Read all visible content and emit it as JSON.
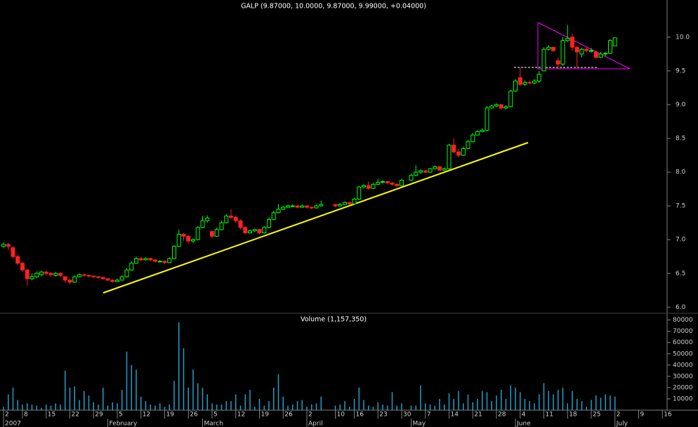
{
  "chart_data": {
    "type": "candlestick",
    "title": "GALP (9.87000, 10.0000, 9.87000, 9.99000, +0.04000)",
    "x": [
      "2007-01-02",
      "2007-01-03",
      "2007-01-04",
      "2007-01-05",
      "2007-01-08",
      "2007-01-09",
      "2007-01-10",
      "2007-01-11",
      "2007-01-12",
      "2007-01-15",
      "2007-01-16",
      "2007-01-17",
      "2007-01-18",
      "2007-01-19",
      "2007-01-22",
      "2007-01-23",
      "2007-01-24",
      "2007-01-25",
      "2007-01-26",
      "2007-01-29",
      "2007-01-30",
      "2007-01-31",
      "2007-02-01",
      "2007-02-02",
      "2007-02-05",
      "2007-02-06",
      "2007-02-07",
      "2007-02-08",
      "2007-02-09",
      "2007-02-12",
      "2007-02-13",
      "2007-02-14",
      "2007-02-15",
      "2007-02-16",
      "2007-02-19",
      "2007-02-20",
      "2007-02-21",
      "2007-02-22",
      "2007-02-23",
      "2007-02-26",
      "2007-02-27",
      "2007-02-28",
      "2007-03-01",
      "2007-03-02",
      "2007-03-05",
      "2007-03-06",
      "2007-03-07",
      "2007-03-08",
      "2007-03-09",
      "2007-03-12",
      "2007-03-13",
      "2007-03-14",
      "2007-03-15",
      "2007-03-16",
      "2007-03-19",
      "2007-03-20",
      "2007-03-21",
      "2007-03-22",
      "2007-03-23",
      "2007-03-26",
      "2007-03-27",
      "2007-03-28",
      "2007-03-29",
      "2007-03-30",
      "2007-04-02",
      "2007-04-03",
      "2007-04-04",
      "2007-04-05",
      "2007-04-10",
      "2007-04-11",
      "2007-04-12",
      "2007-04-13",
      "2007-04-16",
      "2007-04-17",
      "2007-04-18",
      "2007-04-19",
      "2007-04-20",
      "2007-04-23",
      "2007-04-24",
      "2007-04-25",
      "2007-04-26",
      "2007-04-27",
      "2007-04-30",
      "2007-05-02",
      "2007-05-03",
      "2007-05-04",
      "2007-05-07",
      "2007-05-08",
      "2007-05-09",
      "2007-05-10",
      "2007-05-11",
      "2007-05-14",
      "2007-05-15",
      "2007-05-16",
      "2007-05-17",
      "2007-05-18",
      "2007-05-21",
      "2007-05-22",
      "2007-05-23",
      "2007-05-24",
      "2007-05-25",
      "2007-05-28",
      "2007-05-29",
      "2007-05-30",
      "2007-05-31",
      "2007-06-01",
      "2007-06-04",
      "2007-06-05",
      "2007-06-06",
      "2007-06-07",
      "2007-06-08",
      "2007-06-11",
      "2007-06-12",
      "2007-06-13",
      "2007-06-14",
      "2007-06-15",
      "2007-06-18",
      "2007-06-19",
      "2007-06-20",
      "2007-06-21",
      "2007-06-22",
      "2007-06-25",
      "2007-06-26",
      "2007-06-27",
      "2007-06-28",
      "2007-06-29",
      "2007-07-02"
    ],
    "open": [
      6.9,
      6.93,
      6.88,
      6.75,
      6.65,
      6.55,
      6.42,
      6.45,
      6.48,
      6.52,
      6.5,
      6.47,
      6.5,
      6.45,
      6.4,
      6.37,
      6.45,
      6.48,
      6.47,
      6.46,
      6.45,
      6.44,
      6.42,
      6.4,
      6.38,
      6.4,
      6.45,
      6.55,
      6.65,
      6.72,
      6.7,
      6.72,
      6.7,
      6.68,
      6.68,
      6.66,
      6.72,
      6.9,
      7.08,
      7.05,
      6.98,
      7.0,
      7.18,
      7.28,
      7.12,
      7.05,
      7.15,
      7.25,
      7.35,
      7.33,
      7.28,
      7.18,
      7.1,
      7.13,
      7.15,
      7.1,
      7.18,
      7.3,
      7.4,
      7.45,
      7.48,
      7.5,
      7.5,
      7.48,
      7.5,
      7.48,
      7.47,
      7.5,
      7.52,
      7.5,
      7.52,
      7.55,
      7.53,
      7.6,
      7.78,
      7.8,
      7.76,
      7.82,
      7.85,
      7.86,
      7.84,
      7.82,
      7.8,
      7.88,
      7.95,
      8.0,
      8.02,
      8.0,
      8.05,
      8.08,
      8.03,
      8.05,
      8.4,
      8.3,
      8.25,
      8.35,
      8.45,
      8.55,
      8.6,
      8.62,
      8.95,
      8.98,
      9.0,
      8.95,
      8.97,
      9.2,
      9.4,
      9.3,
      9.33,
      9.32,
      9.35,
      9.5,
      9.82,
      9.85,
      9.65,
      9.6,
      9.95,
      10.0,
      9.85,
      9.75,
      9.82,
      9.8,
      9.78,
      9.7,
      9.75,
      9.76,
      9.87
    ],
    "high": [
      6.96,
      6.95,
      6.9,
      6.78,
      6.67,
      6.57,
      6.5,
      6.53,
      6.54,
      6.54,
      6.52,
      6.52,
      6.51,
      6.46,
      6.42,
      6.47,
      6.5,
      6.49,
      6.48,
      6.47,
      6.46,
      6.45,
      6.43,
      6.41,
      6.42,
      6.47,
      6.58,
      6.68,
      6.75,
      6.74,
      6.74,
      6.73,
      6.71,
      6.7,
      6.69,
      6.74,
      6.92,
      7.15,
      7.1,
      7.06,
      7.02,
      7.2,
      7.35,
      7.36,
      7.14,
      7.18,
      7.28,
      7.38,
      7.45,
      7.36,
      7.3,
      7.2,
      7.15,
      7.16,
      7.16,
      7.2,
      7.33,
      7.43,
      7.53,
      7.5,
      7.52,
      7.52,
      7.51,
      7.52,
      7.51,
      7.49,
      7.52,
      7.58,
      7.53,
      7.54,
      7.57,
      7.56,
      7.62,
      7.8,
      7.82,
      7.86,
      7.84,
      7.9,
      7.88,
      7.87,
      7.85,
      7.84,
      7.9,
      7.98,
      8.1,
      8.04,
      8.03,
      8.06,
      8.1,
      8.09,
      8.07,
      8.42,
      8.5,
      8.35,
      8.38,
      8.48,
      8.58,
      8.62,
      8.65,
      8.98,
      9.0,
      9.02,
      9.01,
      8.99,
      9.22,
      9.38,
      9.55,
      9.36,
      9.36,
      9.38,
      9.5,
      9.85,
      9.88,
      9.86,
      9.7,
      10.0,
      10.18,
      10.05,
      9.87,
      9.84,
      9.85,
      9.84,
      9.8,
      9.78,
      9.78,
      9.97,
      10.0
    ],
    "low": [
      6.88,
      6.85,
      6.72,
      6.62,
      6.52,
      6.32,
      6.4,
      6.43,
      6.46,
      6.47,
      6.45,
      6.45,
      6.44,
      6.36,
      6.34,
      6.36,
      6.44,
      6.45,
      6.44,
      6.43,
      6.42,
      6.41,
      6.39,
      6.36,
      6.37,
      6.39,
      6.44,
      6.54,
      6.64,
      6.68,
      6.69,
      6.68,
      6.66,
      6.66,
      6.64,
      6.65,
      6.71,
      6.89,
      6.98,
      6.94,
      6.95,
      6.99,
      7.17,
      7.25,
      7.02,
      7.04,
      7.14,
      7.24,
      7.3,
      7.25,
      7.15,
      7.08,
      7.09,
      7.11,
      7.08,
      7.09,
      7.17,
      7.29,
      7.39,
      7.44,
      7.47,
      7.48,
      7.46,
      7.47,
      7.46,
      7.45,
      7.46,
      7.49,
      7.48,
      7.49,
      7.51,
      7.51,
      7.52,
      7.59,
      7.77,
      7.74,
      7.75,
      7.81,
      7.83,
      7.82,
      7.8,
      7.78,
      7.79,
      7.87,
      7.94,
      7.97,
      7.98,
      7.99,
      8.04,
      8.02,
      8.02,
      8.04,
      8.28,
      8.22,
      8.24,
      8.34,
      8.44,
      8.54,
      8.59,
      8.61,
      8.94,
      8.96,
      8.93,
      8.93,
      8.96,
      9.19,
      9.28,
      9.28,
      9.3,
      9.3,
      9.32,
      9.5,
      9.8,
      9.78,
      9.52,
      9.58,
      9.93,
      9.8,
      9.55,
      9.7,
      9.78,
      9.77,
      9.68,
      9.69,
      9.72,
      9.75,
      9.87
    ],
    "close": [
      6.93,
      6.9,
      6.75,
      6.65,
      6.55,
      6.42,
      6.45,
      6.5,
      6.52,
      6.5,
      6.48,
      6.5,
      6.47,
      6.4,
      6.37,
      6.45,
      6.48,
      6.47,
      6.46,
      6.45,
      6.44,
      6.42,
      6.4,
      6.38,
      6.4,
      6.45,
      6.55,
      6.65,
      6.72,
      6.7,
      6.72,
      6.7,
      6.68,
      6.68,
      6.66,
      6.72,
      6.9,
      7.08,
      7.05,
      6.98,
      7.0,
      7.18,
      7.28,
      7.32,
      7.05,
      7.15,
      7.25,
      7.35,
      7.33,
      7.28,
      7.18,
      7.1,
      7.13,
      7.15,
      7.1,
      7.18,
      7.3,
      7.4,
      7.45,
      7.48,
      7.5,
      7.5,
      7.48,
      7.5,
      7.48,
      7.47,
      7.5,
      7.52,
      7.5,
      7.52,
      7.55,
      7.53,
      7.6,
      7.78,
      7.8,
      7.76,
      7.82,
      7.85,
      7.86,
      7.84,
      7.82,
      7.8,
      7.88,
      7.95,
      8.0,
      8.02,
      8.0,
      8.05,
      8.08,
      8.03,
      8.05,
      8.4,
      8.3,
      8.25,
      8.35,
      8.45,
      8.55,
      8.6,
      8.62,
      8.95,
      8.98,
      9.0,
      8.95,
      8.97,
      9.2,
      9.35,
      9.3,
      9.33,
      9.32,
      9.35,
      9.45,
      9.82,
      9.85,
      9.8,
      9.6,
      9.95,
      9.98,
      9.85,
      9.78,
      9.82,
      9.8,
      9.8,
      9.7,
      9.75,
      9.76,
      9.95,
      9.99
    ],
    "up_color": "#00ff00",
    "down_color": "#ff2020",
    "xlim": [
      "2007-01-02",
      "2007-07-17"
    ],
    "xticks": [
      {
        "value": "2007-01-02",
        "label": "2"
      },
      {
        "value": "2007-01-08",
        "label": "8"
      },
      {
        "value": "2007-01-15",
        "label": "15"
      },
      {
        "value": "2007-01-22",
        "label": "22"
      },
      {
        "value": "2007-01-29",
        "label": "29"
      },
      {
        "value": "2007-02-05",
        "label": "5"
      },
      {
        "value": "2007-02-12",
        "label": "12"
      },
      {
        "value": "2007-02-19",
        "label": "19"
      },
      {
        "value": "2007-02-26",
        "label": "26"
      },
      {
        "value": "2007-03-05",
        "label": "5"
      },
      {
        "value": "2007-03-12",
        "label": "12"
      },
      {
        "value": "2007-03-19",
        "label": "19"
      },
      {
        "value": "2007-03-26",
        "label": "26"
      },
      {
        "value": "2007-04-02",
        "label": "2"
      },
      {
        "value": "2007-04-10",
        "label": "10"
      },
      {
        "value": "2007-04-16",
        "label": "16"
      },
      {
        "value": "2007-04-23",
        "label": "23"
      },
      {
        "value": "2007-04-30",
        "label": "30"
      },
      {
        "value": "2007-05-07",
        "label": "7"
      },
      {
        "value": "2007-05-14",
        "label": "14"
      },
      {
        "value": "2007-05-21",
        "label": "21"
      },
      {
        "value": "2007-05-28",
        "label": "28"
      },
      {
        "value": "2007-06-04",
        "label": "4"
      },
      {
        "value": "2007-06-11",
        "label": "11"
      },
      {
        "value": "2007-06-18",
        "label": "18"
      },
      {
        "value": "2007-06-25",
        "label": "25"
      },
      {
        "value": "2007-07-02",
        "label": "2"
      },
      {
        "value": "2007-07-09",
        "label": "9"
      },
      {
        "value": "2007-07-16",
        "label": "16"
      }
    ],
    "month_labels": [
      {
        "value": "2007-01-02",
        "label": "2007"
      },
      {
        "value": "2007-02-01",
        "label": "February"
      },
      {
        "value": "2007-03-01",
        "label": "March"
      },
      {
        "value": "2007-04-02",
        "label": "April"
      },
      {
        "value": "2007-05-02",
        "label": "May"
      },
      {
        "value": "2007-06-01",
        "label": "June"
      },
      {
        "value": "2007-07-02",
        "label": "July"
      }
    ],
    "ylim": [
      5.92,
      10.55
    ],
    "yticks": [
      {
        "value": 6,
        "label": "6.0"
      },
      6.5,
      {
        "value": 7,
        "label": "7.0"
      },
      7.5,
      {
        "value": 8,
        "label": "8.0"
      },
      8.5,
      {
        "value": 9,
        "label": "9.0"
      },
      9.5,
      {
        "value": 10,
        "label": "10.0"
      }
    ],
    "volume": {
      "title": "Volume (1,157,350)",
      "color": "#1ea0c8",
      "values": [
        3000,
        14000,
        20000,
        9000,
        5000,
        6000,
        5000,
        4000,
        2000,
        5000,
        4000,
        6000,
        5000,
        35000,
        20000,
        21000,
        9000,
        17000,
        13000,
        7000,
        5000,
        20000,
        4000,
        7000,
        6000,
        18000,
        52000,
        40000,
        36000,
        12000,
        8000,
        5000,
        4000,
        6000,
        3000,
        5000,
        26000,
        78000,
        55000,
        20000,
        36000,
        24000,
        20000,
        14000,
        6000,
        5000,
        5000,
        8000,
        8000,
        14000,
        4000,
        14000,
        18000,
        3000,
        10000,
        4000,
        8000,
        20000,
        32000,
        12000,
        4000,
        5000,
        8000,
        9000,
        3000,
        5000,
        6000,
        12000,
        4000,
        5000,
        8000,
        3000,
        10000,
        20000,
        9000,
        4000,
        3000,
        7000,
        5000,
        4000,
        16000,
        4000,
        6000,
        4000,
        4000,
        22000,
        6000,
        5000,
        4000,
        10000,
        5000,
        15000,
        10000,
        17000,
        6000,
        14000,
        7000,
        10000,
        17000,
        16000,
        8000,
        13000,
        18000,
        10000,
        22000,
        20000,
        16000,
        10000,
        8000,
        6000,
        14000,
        24000,
        17000,
        14000,
        18000,
        20000,
        6000,
        17000,
        10000,
        8000,
        3000,
        9000,
        13000,
        11000,
        14000,
        13000,
        12000
      ],
      "ylim": [
        0,
        86000
      ],
      "yticks": [
        10000,
        20000,
        30000,
        40000,
        50000,
        60000,
        70000,
        80000
      ]
    }
  }
}
